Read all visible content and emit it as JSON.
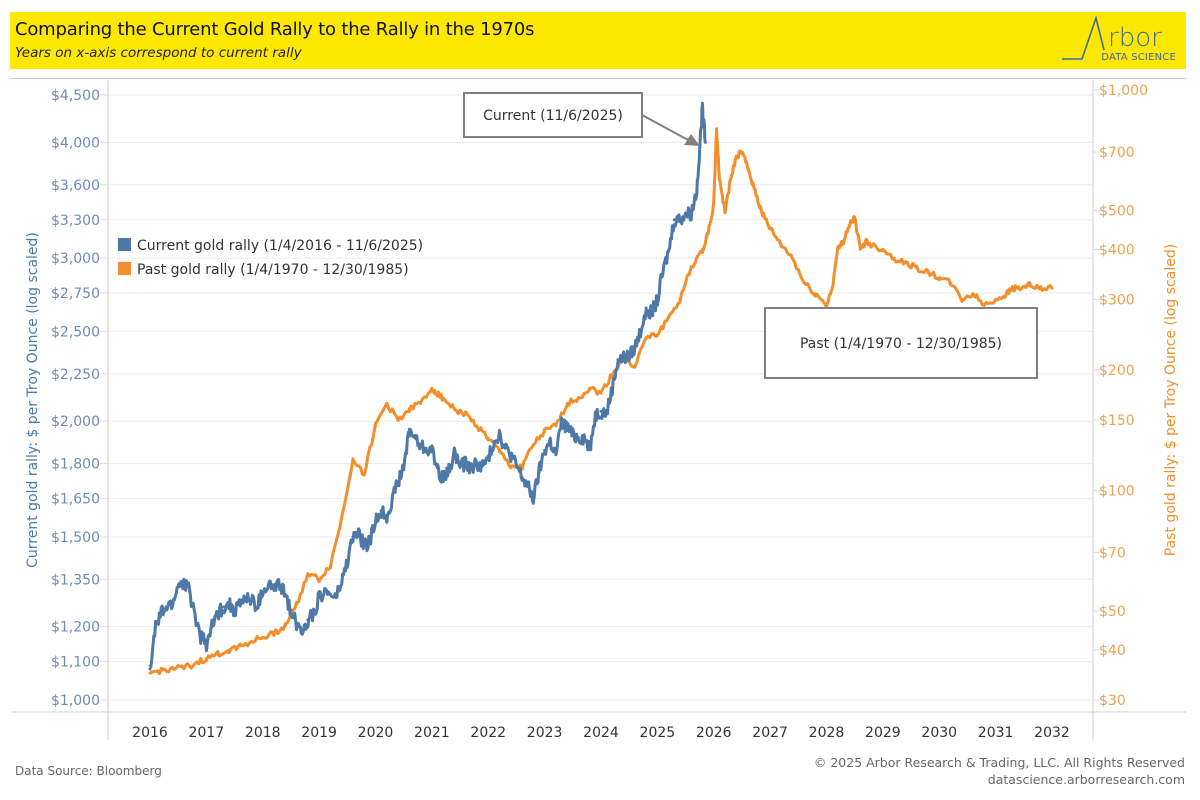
{
  "header": {
    "title": "Comparing the Current Gold Rally to the Rally in the 1970s",
    "subtitle": "Years on x-axis correspond to current rally",
    "logo_name": "Arbor",
    "logo_tagline": "DATA SCIENCE"
  },
  "footer": {
    "source": "Data Source: Bloomberg",
    "copyright": "© 2025 Arbor Research & Trading, LLC. All Rights Reserved",
    "website": "datascience.arborresearch.com"
  },
  "colors": {
    "current": "#4e79a7",
    "past": "#f28e2b",
    "header_bg": "#ffe800",
    "gridline": "#ebebeb"
  },
  "chart_data": {
    "type": "line",
    "title": "Comparing the Current Gold Rally to the Rally in the 1970s",
    "subtitle": "Years on x-axis correspond to current rally",
    "xlabel": "",
    "x_ticks": [
      "2016",
      "2017",
      "2018",
      "2019",
      "2020",
      "2021",
      "2022",
      "2023",
      "2024",
      "2025",
      "2026",
      "2027",
      "2028",
      "2029",
      "2030",
      "2031",
      "2032"
    ],
    "xlim": [
      2015.75,
      2032.75
    ],
    "y_left": {
      "label": "Current gold rally: $ per Troy Ounce (log scaled)",
      "scale": "log",
      "ylim": [
        1000,
        4500
      ],
      "ticks": [
        1000,
        1100,
        1200,
        1350,
        1500,
        1650,
        1800,
        2000,
        2250,
        2500,
        2750,
        3000,
        3300,
        3600,
        4000,
        4500
      ],
      "tick_labels": [
        "$1,000",
        "$1,100",
        "$1,200",
        "$1,350",
        "$1,500",
        "$1,650",
        "$1,800",
        "$2,000",
        "$2,250",
        "$2,500",
        "$2,750",
        "$3,000",
        "$3,300",
        "$3,600",
        "$4,000",
        "$4,500"
      ]
    },
    "y_right": {
      "label": "Past gold rally: $ per Troy Ounce (log scaled)",
      "scale": "log",
      "ylim": [
        30,
        1000
      ],
      "ticks": [
        30,
        40,
        50,
        70,
        100,
        150,
        200,
        300,
        400,
        500,
        700,
        1000
      ],
      "tick_labels": [
        "$30",
        "$40",
        "$50",
        "$70",
        "$100",
        "$150",
        "$200",
        "$300",
        "$400",
        "$500",
        "$700",
        "$1,000"
      ]
    },
    "grid": true,
    "legend": {
      "placement": "upper-left",
      "entries": [
        {
          "label": "Current gold rally (1/4/2016 - 11/6/2025)",
          "color": "#4e79a7"
        },
        {
          "label": "Past gold rally (1/4/1970 - 12/30/1985)",
          "color": "#f28e2b"
        }
      ]
    },
    "annotations": [
      {
        "text": "Current (11/6/2025)",
        "target_series": "current",
        "target_x": 2025.85,
        "target_y": 4000
      },
      {
        "text": "Past (1/4/1970 - 12/30/1985)"
      }
    ],
    "series": [
      {
        "name": "Current gold rally (1/4/2016 - 11/6/2025)",
        "axis": "left",
        "color": "#4e79a7",
        "x": [
          2016.0,
          2016.1,
          2016.2,
          2016.3,
          2016.4,
          2016.5,
          2016.6,
          2016.7,
          2016.8,
          2016.9,
          2017.0,
          2017.1,
          2017.2,
          2017.3,
          2017.4,
          2017.5,
          2017.6,
          2017.7,
          2017.8,
          2017.9,
          2018.0,
          2018.1,
          2018.2,
          2018.3,
          2018.4,
          2018.5,
          2018.6,
          2018.7,
          2018.8,
          2018.9,
          2019.0,
          2019.1,
          2019.2,
          2019.3,
          2019.4,
          2019.5,
          2019.6,
          2019.7,
          2019.8,
          2019.9,
          2020.0,
          2020.1,
          2020.2,
          2020.3,
          2020.4,
          2020.5,
          2020.6,
          2020.7,
          2020.8,
          2020.9,
          2021.0,
          2021.1,
          2021.2,
          2021.3,
          2021.4,
          2021.5,
          2021.6,
          2021.7,
          2021.8,
          2021.9,
          2022.0,
          2022.1,
          2022.2,
          2022.3,
          2022.4,
          2022.5,
          2022.6,
          2022.7,
          2022.8,
          2022.9,
          2023.0,
          2023.1,
          2023.2,
          2023.3,
          2023.4,
          2023.5,
          2023.6,
          2023.7,
          2023.8,
          2023.9,
          2024.0,
          2024.1,
          2024.2,
          2024.3,
          2024.4,
          2024.5,
          2024.6,
          2024.7,
          2024.8,
          2024.9,
          2025.0,
          2025.1,
          2025.2,
          2025.3,
          2025.4,
          2025.5,
          2025.6,
          2025.7,
          2025.75,
          2025.8,
          2025.85
        ],
        "values": [
          1080,
          1200,
          1240,
          1260,
          1270,
          1330,
          1340,
          1310,
          1230,
          1170,
          1150,
          1200,
          1240,
          1260,
          1270,
          1250,
          1270,
          1290,
          1280,
          1260,
          1310,
          1330,
          1320,
          1330,
          1300,
          1250,
          1210,
          1190,
          1220,
          1240,
          1290,
          1310,
          1300,
          1290,
          1340,
          1410,
          1500,
          1510,
          1470,
          1480,
          1560,
          1600,
          1580,
          1650,
          1720,
          1780,
          1960,
          1920,
          1880,
          1870,
          1860,
          1780,
          1730,
          1770,
          1850,
          1790,
          1800,
          1780,
          1800,
          1790,
          1820,
          1900,
          1940,
          1870,
          1840,
          1790,
          1740,
          1700,
          1650,
          1760,
          1860,
          1900,
          1840,
          1990,
          1970,
          1930,
          1920,
          1920,
          1870,
          2030,
          2050,
          2040,
          2170,
          2330,
          2340,
          2350,
          2400,
          2500,
          2650,
          2620,
          2700,
          2900,
          3050,
          3300,
          3300,
          3350,
          3350,
          3550,
          3950,
          4350,
          4000
        ]
      },
      {
        "name": "Past gold rally (1/4/1970 - 12/30/1985)",
        "axis": "right",
        "color": "#f28e2b",
        "x": [
          2016.0,
          2016.2,
          2016.4,
          2016.6,
          2016.8,
          2017.0,
          2017.2,
          2017.4,
          2017.6,
          2017.8,
          2018.0,
          2018.2,
          2018.4,
          2018.6,
          2018.8,
          2019.0,
          2019.2,
          2019.4,
          2019.6,
          2019.8,
          2020.0,
          2020.2,
          2020.4,
          2020.6,
          2020.8,
          2021.0,
          2021.1,
          2021.2,
          2021.4,
          2021.6,
          2021.8,
          2022.0,
          2022.2,
          2022.4,
          2022.6,
          2022.8,
          2023.0,
          2023.2,
          2023.4,
          2023.6,
          2023.8,
          2024.0,
          2024.2,
          2024.4,
          2024.6,
          2024.8,
          2025.0,
          2025.2,
          2025.4,
          2025.6,
          2025.8,
          2025.9,
          2026.0,
          2026.05,
          2026.1,
          2026.2,
          2026.3,
          2026.4,
          2026.5,
          2026.6,
          2026.7,
          2026.8,
          2026.9,
          2027.0,
          2027.2,
          2027.4,
          2027.6,
          2027.8,
          2028.0,
          2028.1,
          2028.2,
          2028.3,
          2028.4,
          2028.5,
          2028.6,
          2028.7,
          2028.8,
          2029.0,
          2029.2,
          2029.4,
          2029.6,
          2029.8,
          2030.0,
          2030.2,
          2030.4,
          2030.6,
          2030.8,
          2031.0,
          2031.2,
          2031.3,
          2031.4,
          2031.6,
          2031.8,
          2032.0
        ],
        "values": [
          35,
          35.5,
          36,
          36,
          37,
          38,
          39,
          40,
          41,
          42,
          43,
          44,
          46,
          52,
          62,
          60,
          65,
          85,
          120,
          110,
          145,
          165,
          150,
          160,
          165,
          180,
          175,
          170,
          160,
          155,
          145,
          135,
          125,
          115,
          115,
          130,
          140,
          145,
          165,
          170,
          180,
          175,
          195,
          215,
          205,
          240,
          245,
          270,
          300,
          360,
          400,
          440,
          520,
          800,
          600,
          500,
          600,
          680,
          700,
          640,
          580,
          520,
          480,
          450,
          410,
          380,
          330,
          310,
          290,
          320,
          400,
          420,
          460,
          480,
          400,
          420,
          410,
          400,
          380,
          370,
          360,
          350,
          340,
          330,
          300,
          310,
          290,
          300,
          310,
          320,
          320,
          325,
          318,
          320
        ]
      }
    ]
  }
}
